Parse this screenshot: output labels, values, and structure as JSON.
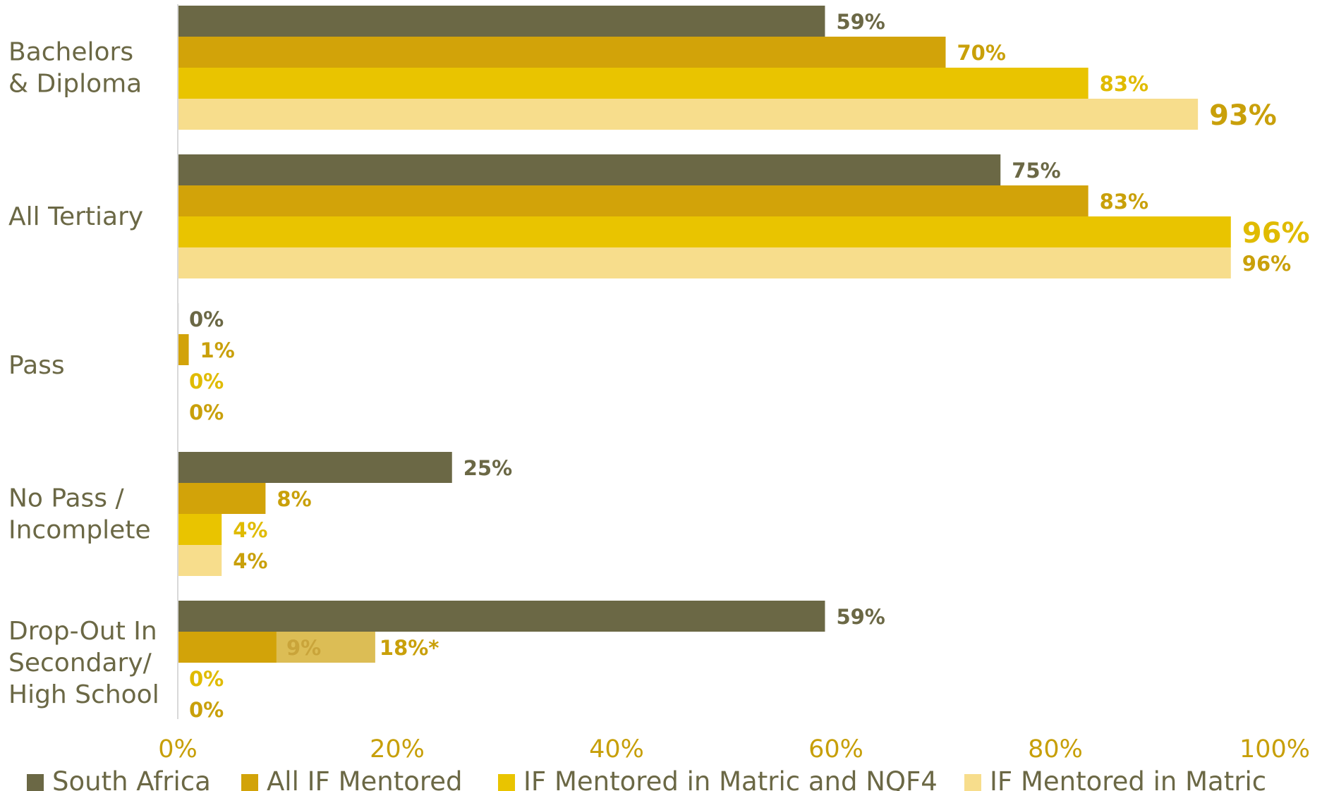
{
  "chart_data": {
    "type": "bar",
    "orientation": "horizontal",
    "categories": [
      [
        "Bachelors",
        "& Diploma"
      ],
      [
        "All Tertiary"
      ],
      [
        "Pass"
      ],
      [
        "No Pass /",
        "Incomplete"
      ],
      [
        "Drop-Out In",
        "Secondary/",
        "High School"
      ]
    ],
    "series": [
      {
        "name": "South Africa",
        "color": "#6b6845",
        "values": [
          59,
          75,
          0,
          25,
          59
        ],
        "labels": [
          "59%",
          "75%",
          "0%",
          "25%",
          "59%"
        ]
      },
      {
        "name": "All IF Mentored",
        "color": "#d2a309",
        "values": [
          70,
          83,
          1,
          8,
          9
        ],
        "labels": [
          "70%",
          "83%",
          "1%",
          "8%",
          "9%"
        ]
      },
      {
        "name": "IF Mentored in Matric and NQF4",
        "color": "#e9c400",
        "values": [
          83,
          96,
          0,
          4,
          0
        ],
        "labels": [
          "83%",
          "96%",
          "0%",
          "4%",
          "0%"
        ]
      },
      {
        "name": "IF Mentored in Matric",
        "color": "#f7dd8c",
        "values": [
          93,
          96,
          0,
          4,
          0
        ],
        "labels": [
          "93%",
          "96%",
          "0%",
          "4%",
          "0%"
        ]
      }
    ],
    "annotations": [
      {
        "category_index": 4,
        "series_index": 1,
        "value": 18,
        "label": "18%*",
        "inner_label": "9%",
        "color": "#dcbd55"
      }
    ],
    "highlighted_labels": [
      {
        "category_index": 0,
        "series_index": 3
      },
      {
        "category_index": 1,
        "series_index": 2
      }
    ],
    "label_colors": {
      "South Africa": "#6b6845",
      "IF Mentored": "#c9a00a",
      "IF Mentored in Matric and NQF4": "#e0bb00"
    },
    "xlim": [
      0,
      100
    ],
    "xticks": [
      "0%",
      "20%",
      "40%",
      "60%",
      "80%",
      "100%"
    ],
    "legend_position": "bottom",
    "grid": false,
    "title": "",
    "xlabel": "",
    "ylabel": ""
  }
}
